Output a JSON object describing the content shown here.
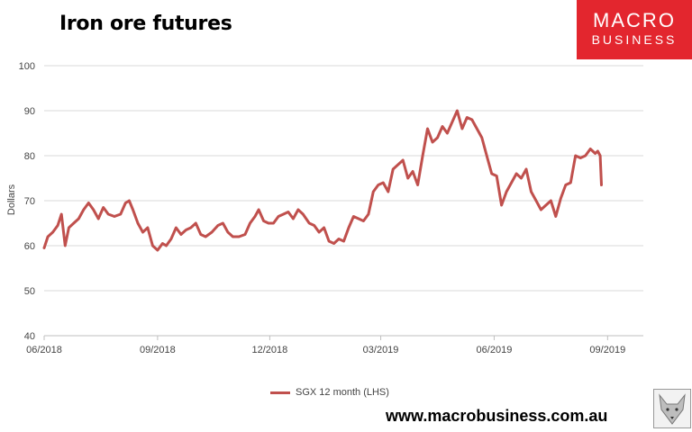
{
  "header": {
    "title": "Iron ore futures",
    "logo_line1": "MACRO",
    "logo_line2": "BUSINESS"
  },
  "footer": {
    "website": "www.macrobusiness.com.au"
  },
  "colors": {
    "series": "#c0504d",
    "grid": "#d9d9d9",
    "brand": "#e3262e"
  },
  "chart_data": {
    "type": "line",
    "title": "Iron ore futures",
    "xlabel": "",
    "ylabel": "Dollars",
    "ylim": [
      40,
      100
    ],
    "yticks": [
      40,
      50,
      60,
      70,
      80,
      90,
      100
    ],
    "xlim": [
      "2018-06-01",
      "2019-09-30"
    ],
    "xticks": [
      {
        "date": "2018-06-01",
        "label": "06/2018"
      },
      {
        "date": "2018-09-01",
        "label": "09/2018"
      },
      {
        "date": "2018-12-01",
        "label": "12/2018"
      },
      {
        "date": "2019-03-01",
        "label": "03/2019"
      },
      {
        "date": "2019-06-01",
        "label": "06/2019"
      },
      {
        "date": "2019-09-01",
        "label": "09/2019"
      }
    ],
    "grid": true,
    "legend": "bottom",
    "series": [
      {
        "name": "SGX 12 month (LHS)",
        "points": [
          [
            "2018-06-01",
            59.5
          ],
          [
            "2018-06-04",
            62
          ],
          [
            "2018-06-08",
            63
          ],
          [
            "2018-06-12",
            64.5
          ],
          [
            "2018-06-15",
            67
          ],
          [
            "2018-06-18",
            60
          ],
          [
            "2018-06-21",
            64
          ],
          [
            "2018-06-25",
            65
          ],
          [
            "2018-06-29",
            66
          ],
          [
            "2018-07-03",
            68
          ],
          [
            "2018-07-07",
            69.5
          ],
          [
            "2018-07-11",
            68
          ],
          [
            "2018-07-15",
            66
          ],
          [
            "2018-07-19",
            68.5
          ],
          [
            "2018-07-23",
            67
          ],
          [
            "2018-07-28",
            66.5
          ],
          [
            "2018-08-02",
            67
          ],
          [
            "2018-08-06",
            69.5
          ],
          [
            "2018-08-09",
            70
          ],
          [
            "2018-08-12",
            68
          ],
          [
            "2018-08-16",
            65
          ],
          [
            "2018-08-20",
            63
          ],
          [
            "2018-08-24",
            64
          ],
          [
            "2018-08-28",
            60
          ],
          [
            "2018-09-01",
            59
          ],
          [
            "2018-09-05",
            60.5
          ],
          [
            "2018-09-08",
            60
          ],
          [
            "2018-09-12",
            61.5
          ],
          [
            "2018-09-16",
            64
          ],
          [
            "2018-09-20",
            62.5
          ],
          [
            "2018-09-24",
            63.5
          ],
          [
            "2018-09-28",
            64
          ],
          [
            "2018-10-02",
            65
          ],
          [
            "2018-10-06",
            62.5
          ],
          [
            "2018-10-10",
            62
          ],
          [
            "2018-10-15",
            63
          ],
          [
            "2018-10-20",
            64.5
          ],
          [
            "2018-10-24",
            65
          ],
          [
            "2018-10-28",
            63
          ],
          [
            "2018-11-01",
            62
          ],
          [
            "2018-11-06",
            62
          ],
          [
            "2018-11-11",
            62.5
          ],
          [
            "2018-11-15",
            65
          ],
          [
            "2018-11-19",
            66.5
          ],
          [
            "2018-11-22",
            68
          ],
          [
            "2018-11-26",
            65.5
          ],
          [
            "2018-11-30",
            65
          ],
          [
            "2018-12-04",
            65
          ],
          [
            "2018-12-08",
            66.5
          ],
          [
            "2018-12-12",
            67
          ],
          [
            "2018-12-16",
            67.5
          ],
          [
            "2018-12-20",
            66
          ],
          [
            "2018-12-24",
            68
          ],
          [
            "2018-12-28",
            67
          ],
          [
            "2019-01-02",
            65
          ],
          [
            "2019-01-06",
            64.5
          ],
          [
            "2019-01-10",
            63
          ],
          [
            "2019-01-14",
            64
          ],
          [
            "2019-01-18",
            61
          ],
          [
            "2019-01-22",
            60.5
          ],
          [
            "2019-01-26",
            61.5
          ],
          [
            "2019-01-30",
            61
          ],
          [
            "2019-02-03",
            64
          ],
          [
            "2019-02-07",
            66.5
          ],
          [
            "2019-02-11",
            66
          ],
          [
            "2019-02-15",
            65.5
          ],
          [
            "2019-02-19",
            67
          ],
          [
            "2019-02-23",
            72
          ],
          [
            "2019-02-27",
            73.5
          ],
          [
            "2019-03-03",
            74
          ],
          [
            "2019-03-07",
            72
          ],
          [
            "2019-03-11",
            77
          ],
          [
            "2019-03-15",
            78
          ],
          [
            "2019-03-19",
            79
          ],
          [
            "2019-03-23",
            75
          ],
          [
            "2019-03-27",
            76.5
          ],
          [
            "2019-03-31",
            73.5
          ],
          [
            "2019-04-04",
            80
          ],
          [
            "2019-04-08",
            86
          ],
          [
            "2019-04-12",
            83
          ],
          [
            "2019-04-16",
            84
          ],
          [
            "2019-04-20",
            86.5
          ],
          [
            "2019-04-24",
            85
          ],
          [
            "2019-04-28",
            87.5
          ],
          [
            "2019-05-02",
            90
          ],
          [
            "2019-05-06",
            86
          ],
          [
            "2019-05-10",
            88.5
          ],
          [
            "2019-05-14",
            88
          ],
          [
            "2019-05-18",
            86
          ],
          [
            "2019-05-22",
            84
          ],
          [
            "2019-05-26",
            80
          ],
          [
            "2019-05-30",
            76
          ],
          [
            "2019-06-03",
            75.5
          ],
          [
            "2019-06-07",
            69
          ],
          [
            "2019-06-11",
            72
          ],
          [
            "2019-06-15",
            74
          ],
          [
            "2019-06-19",
            76
          ],
          [
            "2019-06-23",
            75
          ],
          [
            "2019-06-27",
            77
          ],
          [
            "2019-07-01",
            72
          ],
          [
            "2019-07-05",
            70
          ],
          [
            "2019-07-09",
            68
          ],
          [
            "2019-07-13",
            69
          ],
          [
            "2019-07-17",
            70
          ],
          [
            "2019-07-21",
            66.5
          ],
          [
            "2019-07-25",
            70.5
          ],
          [
            "2019-07-29",
            73.5
          ],
          [
            "2019-08-02",
            74
          ],
          [
            "2019-08-06",
            80
          ],
          [
            "2019-08-10",
            79.5
          ],
          [
            "2019-08-14",
            80
          ],
          [
            "2019-08-18",
            81.5
          ],
          [
            "2019-08-22",
            80.5
          ],
          [
            "2019-08-24",
            81
          ],
          [
            "2019-08-26",
            80
          ],
          [
            "2019-08-27",
            73.5
          ]
        ]
      }
    ]
  }
}
